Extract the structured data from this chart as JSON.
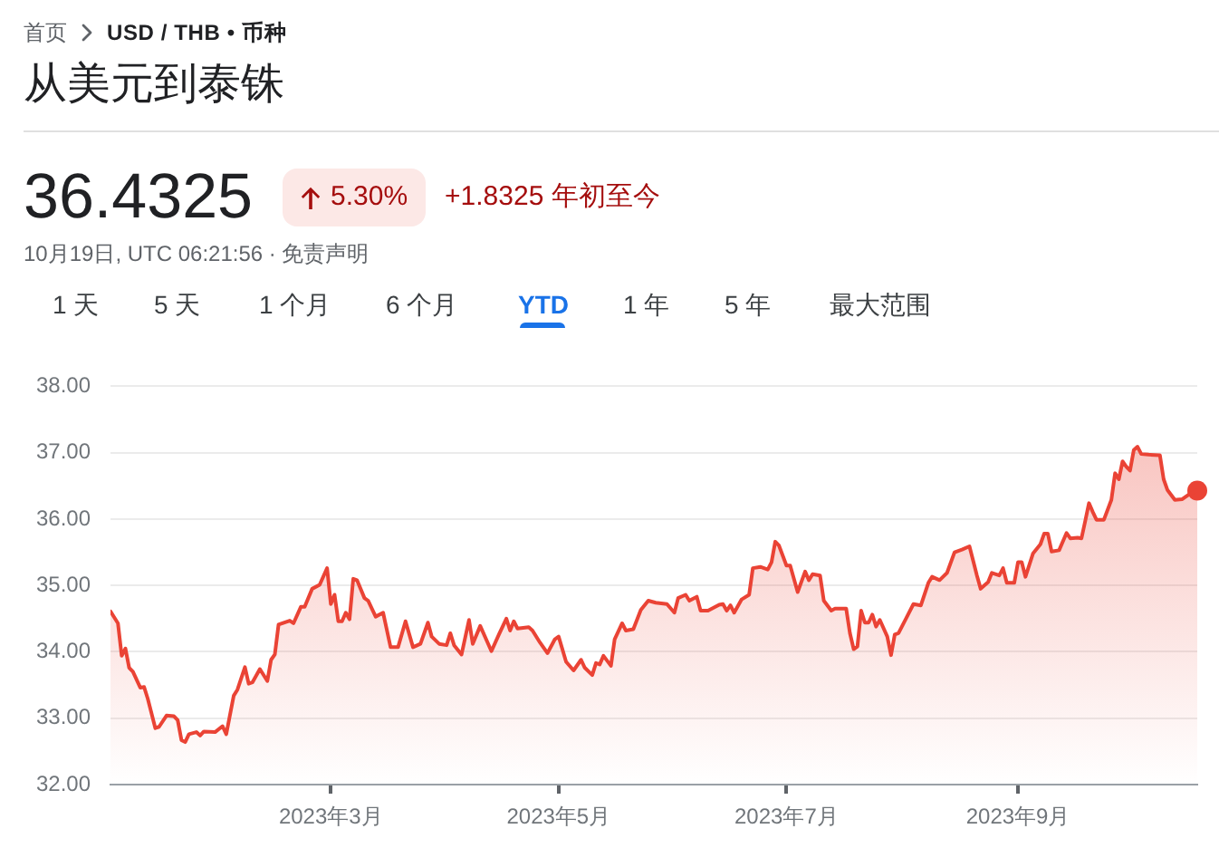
{
  "chart_data": {
    "type": "area",
    "title": "从美元到泰铢",
    "annotations": [
      "首页",
      "USD / THB • 币种",
      "36.4325",
      "5.30%",
      "+1.8325 年初至今",
      "10月19日, UTC 06:21:56 · 免责声明",
      "1 天",
      "5 天",
      "1 个月",
      "6 个月",
      "YTD",
      "1 年",
      "5 年",
      "最大范围"
    ],
    "xlim": [
      "2023-01-01",
      "2023-10-19"
    ],
    "xticks": [
      {
        "value": "2023-03-01",
        "label": "2023年3月"
      },
      {
        "value": "2023-05-01",
        "label": "2023年5月"
      },
      {
        "value": "2023-07-01",
        "label": "2023年7月"
      },
      {
        "value": "2023-09-01",
        "label": "2023年9月"
      }
    ],
    "ylim": [
      32,
      38
    ],
    "yticks": [
      {
        "value": 32,
        "label": "32.00"
      },
      {
        "value": 33,
        "label": "33.00"
      },
      {
        "value": 34,
        "label": "34.00"
      },
      {
        "value": 35,
        "label": "35.00"
      },
      {
        "value": 36,
        "label": "36.00"
      },
      {
        "value": 37,
        "label": "37.00"
      },
      {
        "value": 38,
        "label": "38.00"
      }
    ],
    "grid": "y",
    "series": [
      {
        "color": "#ea4335",
        "marker": "none",
        "x": [
          "2023-01-01",
          "2023-01-03",
          "2023-01-04",
          "2023-01-05",
          "2023-01-06",
          "2023-01-07",
          "2023-01-09",
          "2023-01-10",
          "2023-01-11",
          "2023-01-13",
          "2023-01-14",
          "2023-01-16",
          "2023-01-18",
          "2023-01-19",
          "2023-01-20",
          "2023-01-21",
          "2023-01-22",
          "2023-01-24",
          "2023-01-25",
          "2023-01-26",
          "2023-01-29",
          "2023-01-31",
          "2023-02-01",
          "2023-02-03",
          "2023-02-04",
          "2023-02-06",
          "2023-02-07",
          "2023-02-08",
          "2023-02-10",
          "2023-02-12",
          "2023-02-13",
          "2023-02-14",
          "2023-02-15",
          "2023-02-18",
          "2023-02-19",
          "2023-02-21",
          "2023-02-22",
          "2023-02-24",
          "2023-02-26",
          "2023-02-28",
          "2023-03-01",
          "2023-03-02",
          "2023-03-03",
          "2023-03-04",
          "2023-03-05",
          "2023-03-06",
          "2023-03-07",
          "2023-03-08",
          "2023-03-10",
          "2023-03-11",
          "2023-03-13",
          "2023-03-15",
          "2023-03-17",
          "2023-03-19",
          "2023-03-21",
          "2023-03-23",
          "2023-03-25",
          "2023-03-27",
          "2023-03-28",
          "2023-03-30",
          "2023-04-01",
          "2023-04-02",
          "2023-04-03",
          "2023-04-05",
          "2023-04-07",
          "2023-04-08",
          "2023-04-10",
          "2023-04-13",
          "2023-04-15",
          "2023-04-17",
          "2023-04-18",
          "2023-04-19",
          "2023-04-20",
          "2023-04-23",
          "2023-04-24",
          "2023-04-26",
          "2023-04-28",
          "2023-04-30",
          "2023-05-01",
          "2023-05-03",
          "2023-05-05",
          "2023-05-07",
          "2023-05-08",
          "2023-05-10",
          "2023-05-11",
          "2023-05-12",
          "2023-05-13",
          "2023-05-15",
          "2023-05-16",
          "2023-05-18",
          "2023-05-19",
          "2023-05-21",
          "2023-05-23",
          "2023-05-25",
          "2023-05-27",
          "2023-05-30",
          "2023-06-01",
          "2023-06-02",
          "2023-06-04",
          "2023-06-05",
          "2023-06-07",
          "2023-06-08",
          "2023-06-10",
          "2023-06-13",
          "2023-06-14",
          "2023-06-15",
          "2023-06-16",
          "2023-06-17",
          "2023-06-19",
          "2023-06-21",
          "2023-06-22",
          "2023-06-24",
          "2023-06-26",
          "2023-06-27",
          "2023-06-28",
          "2023-06-29",
          "2023-07-01",
          "2023-07-02",
          "2023-07-04",
          "2023-07-06",
          "2023-07-07",
          "2023-07-08",
          "2023-07-10",
          "2023-07-11",
          "2023-07-13",
          "2023-07-14",
          "2023-07-17",
          "2023-07-18",
          "2023-07-19",
          "2023-07-20",
          "2023-07-21",
          "2023-07-22",
          "2023-07-23",
          "2023-07-24",
          "2023-07-25",
          "2023-07-26",
          "2023-07-28",
          "2023-07-29",
          "2023-07-30",
          "2023-07-31",
          "2023-08-02",
          "2023-08-04",
          "2023-08-06",
          "2023-08-08",
          "2023-08-09",
          "2023-08-11",
          "2023-08-13",
          "2023-08-15",
          "2023-08-17",
          "2023-08-19",
          "2023-08-20",
          "2023-08-21",
          "2023-08-22",
          "2023-08-24",
          "2023-08-25",
          "2023-08-27",
          "2023-08-28",
          "2023-08-29",
          "2023-08-31",
          "2023-09-01",
          "2023-09-02",
          "2023-09-03",
          "2023-09-05",
          "2023-09-07",
          "2023-09-08",
          "2023-09-09",
          "2023-09-10",
          "2023-09-12",
          "2023-09-14",
          "2023-09-15",
          "2023-09-17",
          "2023-09-18",
          "2023-09-19",
          "2023-09-20",
          "2023-09-21",
          "2023-09-22",
          "2023-09-24",
          "2023-09-26",
          "2023-09-27",
          "2023-09-28",
          "2023-09-29",
          "2023-09-30",
          "2023-10-01",
          "2023-10-02",
          "2023-10-03",
          "2023-10-04",
          "2023-10-06",
          "2023-10-09",
          "2023-10-10",
          "2023-10-11",
          "2023-10-13",
          "2023-10-15",
          "2023-10-17",
          "2023-10-19"
        ],
        "values": [
          34.61,
          34.43,
          33.94,
          34.05,
          33.76,
          33.7,
          33.46,
          33.47,
          33.29,
          32.85,
          32.87,
          33.04,
          33.03,
          32.97,
          32.67,
          32.64,
          32.76,
          32.79,
          32.74,
          32.8,
          32.79,
          32.88,
          32.76,
          33.34,
          33.43,
          33.77,
          33.52,
          33.54,
          33.74,
          33.56,
          33.88,
          33.96,
          34.41,
          34.47,
          34.43,
          34.68,
          34.68,
          34.95,
          35.01,
          35.26,
          34.72,
          34.86,
          34.46,
          34.46,
          34.59,
          34.49,
          35.1,
          35.08,
          34.81,
          34.77,
          34.53,
          34.59,
          34.07,
          34.07,
          34.46,
          34.07,
          34.12,
          34.44,
          34.23,
          34.12,
          34.1,
          34.28,
          34.1,
          33.96,
          34.48,
          34.12,
          34.39,
          34.01,
          34.26,
          34.5,
          34.32,
          34.46,
          34.35,
          34.37,
          34.32,
          34.14,
          33.98,
          34.19,
          34.23,
          33.85,
          33.72,
          33.88,
          33.76,
          33.65,
          33.83,
          33.81,
          33.94,
          33.79,
          34.19,
          34.43,
          34.32,
          34.34,
          34.63,
          34.77,
          34.74,
          34.72,
          34.59,
          34.81,
          34.86,
          34.77,
          34.83,
          34.62,
          34.62,
          34.71,
          34.72,
          34.62,
          34.7,
          34.59,
          34.79,
          34.86,
          35.26,
          35.28,
          35.24,
          35.35,
          35.66,
          35.6,
          35.3,
          35.3,
          34.9,
          35.21,
          35.08,
          35.17,
          35.15,
          34.77,
          34.62,
          34.65,
          34.65,
          34.28,
          34.04,
          34.08,
          34.62,
          34.44,
          34.44,
          34.56,
          34.38,
          34.48,
          34.23,
          33.95,
          34.26,
          34.28,
          34.5,
          34.72,
          34.7,
          35.04,
          35.13,
          35.08,
          35.19,
          35.5,
          35.54,
          35.59,
          35.37,
          35.15,
          34.95,
          35.05,
          35.19,
          35.15,
          35.26,
          35.04,
          35.04,
          35.35,
          35.35,
          35.13,
          35.48,
          35.62,
          35.78,
          35.78,
          35.51,
          35.53,
          35.79,
          35.71,
          35.72,
          35.71,
          35.97,
          36.24,
          36.11,
          35.99,
          35.99,
          36.29,
          36.69,
          36.6,
          36.87,
          36.79,
          36.73,
          37.04,
          37.09,
          36.98,
          36.97,
          36.96,
          36.6,
          36.44,
          36.29,
          36.3,
          36.38,
          36.43
        ]
      },
      {
        "type": "scatter",
        "color": "#ea4335",
        "marker": "circle",
        "x": [
          "2023-10-19"
        ],
        "values": [
          36.43
        ]
      }
    ]
  }
}
